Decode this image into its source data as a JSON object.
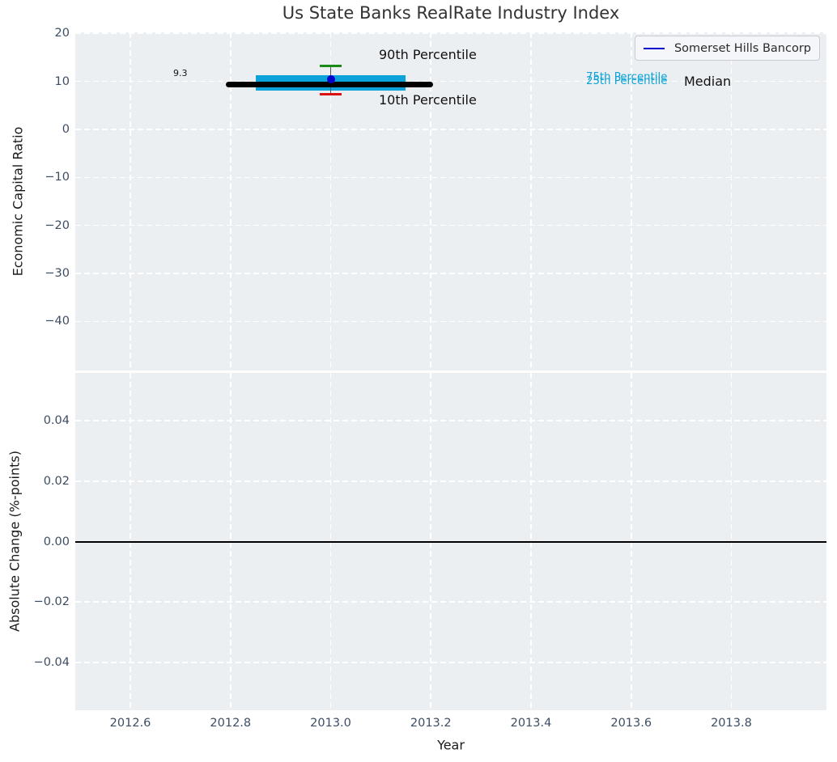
{
  "title": "Us State Banks RealRate Industry Index",
  "legend": {
    "label": "Somerset Hills Bancorp",
    "line_color": "#0000cc"
  },
  "annotations": {
    "p90": "90th Percentile",
    "p10": "10th Percentile",
    "p75": "75th Percentile",
    "p25": "25th Percentile",
    "median": "Median",
    "median_value": "9.3"
  },
  "colors": {
    "plot_bg": "#eceff1",
    "grid": "#ffffff",
    "tick_label": "#3d4d63",
    "text": "#1a1a1a",
    "box": "#0ba3d9",
    "whisker": "#555555",
    "cap_high": "#178a17",
    "cap_low": "#dc1010",
    "company_line": "#0000cc",
    "median_line": "#000000",
    "zero_line": "#000000"
  },
  "chart_data": [
    {
      "type": "boxplot",
      "title": "Us State Banks RealRate Industry Index",
      "xlabel": "Year",
      "ylabel": "Economic Capital Ratio",
      "xlim": [
        2012.49,
        2013.99
      ],
      "ylim": [
        -50.2,
        20.2
      ],
      "xtick_values": [
        2012.6,
        2012.8,
        2013.0,
        2013.2,
        2013.4,
        2013.6,
        2013.8
      ],
      "xtick_labels": [
        "2012.6",
        "2012.8",
        "2013.0",
        "2013.2",
        "2013.4",
        "2013.6",
        "2013.8"
      ],
      "ytick_values": [
        20,
        10,
        0,
        -10,
        -20,
        -30,
        -40
      ],
      "ytick_labels": [
        "20",
        "10",
        "0",
        "−10",
        "−20",
        "−30",
        "−40"
      ],
      "grid": true,
      "legend_position": "upper right",
      "box": {
        "x": 2013.0,
        "p90": 13.2,
        "p75": 11.2,
        "median": 9.3,
        "p25": 8.0,
        "p10": 7.3,
        "median_label": "9.3",
        "median_line_span": [
          2012.79,
          2013.205
        ],
        "box_span": [
          2012.85,
          2013.15
        ],
        "cap_span": [
          2012.978,
          2013.022
        ]
      },
      "series": [
        {
          "name": "Somerset Hills Bancorp",
          "x": [
            2013.0
          ],
          "y": [
            10.4
          ],
          "color": "#0000cc"
        }
      ]
    },
    {
      "type": "line",
      "xlabel": "Year",
      "ylabel": "Absolute Change (%-points)",
      "xlim": [
        2012.49,
        2013.99
      ],
      "ylim": [
        -0.0558,
        0.0558
      ],
      "xtick_values": [
        2012.6,
        2012.8,
        2013.0,
        2013.2,
        2013.4,
        2013.6,
        2013.8
      ],
      "xtick_labels": [
        "2012.6",
        "2012.8",
        "2013.0",
        "2013.2",
        "2013.4",
        "2013.6",
        "2013.8"
      ],
      "ytick_values": [
        0.04,
        0.02,
        0.0,
        -0.02,
        -0.04
      ],
      "ytick_labels": [
        "0.04",
        "0.02",
        "0.00",
        "−0.02",
        "−0.04"
      ],
      "grid": true,
      "zero_line": 0.0,
      "series": []
    }
  ]
}
